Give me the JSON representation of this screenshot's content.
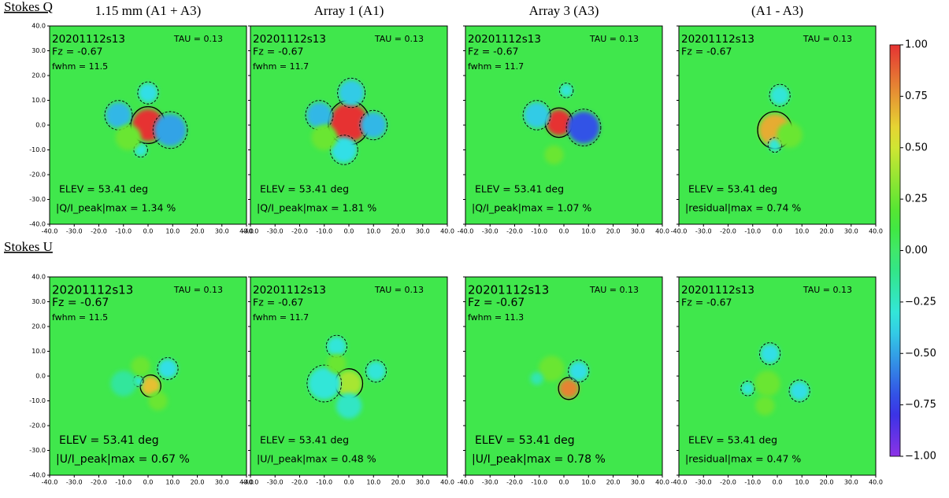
{
  "row_labels": [
    "Stokes Q",
    "Stokes U"
  ],
  "colorbar": {
    "lim": [
      -1,
      1
    ],
    "ticks": [
      {
        "value": 1,
        "label": "1.00"
      },
      {
        "value": 0.75,
        "label": "0.75"
      },
      {
        "value": 0.5,
        "label": "0.50"
      },
      {
        "value": 0.25,
        "label": "0.25"
      },
      {
        "value": 0,
        "label": "0.00"
      },
      {
        "value": -0.25,
        "label": "−0.25"
      },
      {
        "value": -0.5,
        "label": "−0.50"
      },
      {
        "value": -0.75,
        "label": "−0.75"
      },
      {
        "value": -1,
        "label": "−1.00"
      }
    ]
  },
  "chart_data": [
    {
      "type": "heatmap",
      "title": "1.15 mm (A1 + A3)",
      "scan": "20201112s13",
      "tau": "TAU = 0.13",
      "fz": "Fz = -0.67",
      "fwhm": "fwhm = 11.5",
      "elev": "ELEV = 53.41 deg",
      "peak": "|Q/I_peak|max = 1.34 %",
      "base": 0.08,
      "blobs": [
        {
          "x": 0,
          "y": 0,
          "value": 1.0,
          "r": 5
        },
        {
          "x": -12,
          "y": 4,
          "value": -0.45,
          "r": 4
        },
        {
          "x": 9,
          "y": -2,
          "value": -0.5,
          "r": 5
        },
        {
          "x": 0,
          "y": 13,
          "value": -0.35,
          "r": 3
        },
        {
          "x": -3,
          "y": -10,
          "value": -0.3,
          "r": 2
        },
        {
          "x": -8,
          "y": -5,
          "value": 0.25,
          "r": 4
        }
      ],
      "xlim": [
        -40,
        40
      ],
      "ylim": [
        -40,
        40
      ],
      "xticks": [
        {
          "value": -40,
          "label": "-40.0"
        },
        {
          "value": -30,
          "label": "-30.0"
        },
        {
          "value": -20,
          "label": "-20.0"
        },
        {
          "value": -10,
          "label": "-10.0"
        },
        {
          "value": 0,
          "label": "0.0"
        },
        {
          "value": 10,
          "label": "10.0"
        },
        {
          "value": 20,
          "label": "20.0"
        },
        {
          "value": 30,
          "label": "30.0"
        },
        {
          "value": 40,
          "label": "40.0"
        }
      ],
      "yticks": [
        {
          "value": -40,
          "label": "-40.0"
        },
        {
          "value": -30,
          "label": "-30.0"
        },
        {
          "value": -20,
          "label": "-20.0"
        },
        {
          "value": -10,
          "label": "-10.0"
        },
        {
          "value": 0,
          "label": "0.0"
        },
        {
          "value": 10,
          "label": "10.0"
        },
        {
          "value": 20,
          "label": "20.0"
        },
        {
          "value": 30,
          "label": "30.0"
        },
        {
          "value": 40,
          "label": "40.0"
        }
      ]
    },
    {
      "type": "heatmap",
      "title": "Array 1 (A1)",
      "scan": "20201112s13",
      "tau": "TAU = 0.13",
      "fz": "Fz = -0.67",
      "fwhm": "fwhm = 11.7",
      "elev": "ELEV = 53.41 deg",
      "peak": "|Q/I_peak|max = 1.81 %",
      "base": 0.08,
      "blobs": [
        {
          "x": 0,
          "y": 1,
          "value": 1.0,
          "r": 6
        },
        {
          "x": -12,
          "y": 4,
          "value": -0.45,
          "r": 4
        },
        {
          "x": 10,
          "y": 0,
          "value": -0.45,
          "r": 4
        },
        {
          "x": 1,
          "y": 13,
          "value": -0.4,
          "r": 4
        },
        {
          "x": -2,
          "y": -10,
          "value": -0.35,
          "r": 4
        },
        {
          "x": -10,
          "y": -5,
          "value": 0.25,
          "r": 4
        }
      ],
      "xlim": [
        -40,
        40
      ],
      "ylim": [
        -40,
        40
      ],
      "xticks": [
        {
          "value": -40,
          "label": "-40.0"
        },
        {
          "value": -30,
          "label": "-30.0"
        },
        {
          "value": -20,
          "label": "-20.0"
        },
        {
          "value": -10,
          "label": "-10.0"
        },
        {
          "value": 0,
          "label": "0.0"
        },
        {
          "value": 10,
          "label": "10.0"
        },
        {
          "value": 20,
          "label": "20.0"
        },
        {
          "value": 30,
          "label": "30.0"
        },
        {
          "value": 40,
          "label": "40.0"
        }
      ],
      "yticks": [
        {
          "value": -40,
          "label": "-40.0"
        },
        {
          "value": -30,
          "label": "-30.0"
        },
        {
          "value": -20,
          "label": "-20.0"
        },
        {
          "value": -10,
          "label": "-10.0"
        },
        {
          "value": 0,
          "label": "0.0"
        },
        {
          "value": 10,
          "label": "10.0"
        },
        {
          "value": 20,
          "label": "20.0"
        },
        {
          "value": 30,
          "label": "30.0"
        },
        {
          "value": 40,
          "label": "40.0"
        }
      ]
    },
    {
      "type": "heatmap",
      "title": "Array 3 (A3)",
      "scan": "20201112s13",
      "tau": "TAU = 0.13",
      "fz": "Fz = -0.67",
      "fwhm": "fwhm = 11.7",
      "elev": "ELEV = 53.41 deg",
      "peak": "|Q/I_peak|max = 1.07 %",
      "base": 0.08,
      "blobs": [
        {
          "x": -2,
          "y": 1,
          "value": 1.0,
          "r": 4
        },
        {
          "x": 8,
          "y": -1,
          "value": -0.7,
          "r": 5
        },
        {
          "x": -11,
          "y": 4,
          "value": -0.4,
          "r": 4
        },
        {
          "x": 1,
          "y": 14,
          "value": -0.3,
          "r": 2
        },
        {
          "x": -4,
          "y": -12,
          "value": 0.25,
          "r": 3
        }
      ],
      "xlim": [
        -40,
        40
      ],
      "ylim": [
        -40,
        40
      ],
      "xticks": [
        {
          "value": -40,
          "label": "-40.0"
        },
        {
          "value": -30,
          "label": "-30.0"
        },
        {
          "value": -20,
          "label": "-20.0"
        },
        {
          "value": -10,
          "label": "-10.0"
        },
        {
          "value": 0,
          "label": "0.0"
        },
        {
          "value": 10,
          "label": "10.0"
        },
        {
          "value": 20,
          "label": "20.0"
        },
        {
          "value": 30,
          "label": "30.0"
        },
        {
          "value": 40,
          "label": "40.0"
        }
      ],
      "yticks": [
        {
          "value": -40,
          "label": "-40.0"
        },
        {
          "value": -30,
          "label": "-30.0"
        },
        {
          "value": -20,
          "label": "-20.0"
        },
        {
          "value": -10,
          "label": "-10.0"
        },
        {
          "value": 0,
          "label": "0.0"
        },
        {
          "value": 10,
          "label": "10.0"
        },
        {
          "value": 20,
          "label": "20.0"
        },
        {
          "value": 30,
          "label": "30.0"
        },
        {
          "value": 40,
          "label": "40.0"
        }
      ]
    },
    {
      "type": "heatmap",
      "title": "(A1 - A3)",
      "scan": "20201112s13",
      "tau": "TAU = 0.13",
      "fz": "Fz = -0.67",
      "elev": "ELEV = 53.41 deg",
      "peak": "|residual|max = 0.74 %",
      "base": 0.08,
      "blobs": [
        {
          "x": -1,
          "y": -2,
          "value": 0.7,
          "r": 5
        },
        {
          "x": 1,
          "y": 12,
          "value": -0.3,
          "r": 3
        },
        {
          "x": -1,
          "y": -8,
          "value": -0.3,
          "r": 2
        },
        {
          "x": 5,
          "y": -4,
          "value": 0.25,
          "r": 4
        }
      ],
      "xlim": [
        -40,
        40
      ],
      "ylim": [
        -40,
        40
      ],
      "xticks": [
        {
          "value": -40,
          "label": "-40.0"
        },
        {
          "value": -30,
          "label": "-30.0"
        },
        {
          "value": -20,
          "label": "-20.0"
        },
        {
          "value": -10,
          "label": "-10.0"
        },
        {
          "value": 0,
          "label": "0.0"
        },
        {
          "value": 10,
          "label": "10.0"
        },
        {
          "value": 20,
          "label": "20.0"
        },
        {
          "value": 30,
          "label": "30.0"
        },
        {
          "value": 40,
          "label": "40.0"
        }
      ],
      "yticks": [
        {
          "value": -40,
          "label": "-40.0"
        },
        {
          "value": -30,
          "label": "-30.0"
        },
        {
          "value": -20,
          "label": "-20.0"
        },
        {
          "value": -10,
          "label": "-10.0"
        },
        {
          "value": 0,
          "label": "0.0"
        },
        {
          "value": 10,
          "label": "10.0"
        },
        {
          "value": 20,
          "label": "20.0"
        },
        {
          "value": 30,
          "label": "30.0"
        },
        {
          "value": 40,
          "label": "40.0"
        }
      ]
    },
    {
      "type": "heatmap",
      "scan": "20201112s13",
      "tau": "TAU = 0.13",
      "fz": "Fz = -0.67",
      "fwhm": "fwhm = 11.5",
      "elev": "ELEV = 53.41 deg",
      "peak": "|U/I_peak|max = 0.67 %",
      "base": 0.08,
      "blobs": [
        {
          "x": 1,
          "y": -4,
          "value": 0.65,
          "r": 3
        },
        {
          "x": 8,
          "y": 3,
          "value": -0.35,
          "r": 3
        },
        {
          "x": -4,
          "y": -2,
          "value": -0.3,
          "r": 1.5
        },
        {
          "x": -3,
          "y": 4,
          "value": 0.25,
          "r": 3
        },
        {
          "x": 4,
          "y": -10,
          "value": 0.25,
          "r": 3
        },
        {
          "x": -10,
          "y": -3,
          "value": -0.15,
          "r": 4
        }
      ],
      "xlim": [
        -40,
        40
      ],
      "ylim": [
        -40,
        40
      ],
      "xticks": [
        {
          "value": -40,
          "label": "-40.0"
        },
        {
          "value": -30,
          "label": "-30.0"
        },
        {
          "value": -20,
          "label": "-20.0"
        },
        {
          "value": -10,
          "label": "-10.0"
        },
        {
          "value": 0,
          "label": "0.0"
        },
        {
          "value": 10,
          "label": "10.0"
        },
        {
          "value": 20,
          "label": "20.0"
        },
        {
          "value": 30,
          "label": "30.0"
        },
        {
          "value": 40,
          "label": "40.0"
        }
      ],
      "yticks": [
        {
          "value": -40,
          "label": "-40.0"
        },
        {
          "value": -30,
          "label": "-30.0"
        },
        {
          "value": -20,
          "label": "-20.0"
        },
        {
          "value": -10,
          "label": "-10.0"
        },
        {
          "value": 0,
          "label": "0.0"
        },
        {
          "value": 10,
          "label": "10.0"
        },
        {
          "value": 20,
          "label": "20.0"
        },
        {
          "value": 30,
          "label": "30.0"
        },
        {
          "value": 40,
          "label": "40.0"
        }
      ]
    },
    {
      "type": "heatmap",
      "scan": "20201112s13",
      "tau": "TAU = 0.13",
      "fz": "Fz = -0.67",
      "fwhm": "fwhm = 11.7",
      "elev": "ELEV = 53.41 deg",
      "peak": "|U/I_peak|max = 0.48 %",
      "base": 0.08,
      "blobs": [
        {
          "x": 0,
          "y": -3,
          "value": 0.4,
          "r": 4
        },
        {
          "x": -10,
          "y": -3,
          "value": -0.3,
          "r": 5
        },
        {
          "x": -5,
          "y": 12,
          "value": -0.3,
          "r": 3
        },
        {
          "x": 11,
          "y": 2,
          "value": -0.3,
          "r": 3
        },
        {
          "x": -5,
          "y": 5,
          "value": 0.25,
          "r": 3
        },
        {
          "x": 0,
          "y": -12,
          "value": -0.25,
          "r": 4
        }
      ],
      "xlim": [
        -40,
        40
      ],
      "ylim": [
        -40,
        40
      ],
      "xticks": [
        {
          "value": -40,
          "label": "-40.0"
        },
        {
          "value": -30,
          "label": "-30.0"
        },
        {
          "value": -20,
          "label": "-20.0"
        },
        {
          "value": -10,
          "label": "-10.0"
        },
        {
          "value": 0,
          "label": "0.0"
        },
        {
          "value": 10,
          "label": "10.0"
        },
        {
          "value": 20,
          "label": "20.0"
        },
        {
          "value": 30,
          "label": "30.0"
        },
        {
          "value": 40,
          "label": "40.0"
        }
      ],
      "yticks": [
        {
          "value": -40,
          "label": "-40.0"
        },
        {
          "value": -30,
          "label": "-30.0"
        },
        {
          "value": -20,
          "label": "-20.0"
        },
        {
          "value": -10,
          "label": "-10.0"
        },
        {
          "value": 0,
          "label": "0.0"
        },
        {
          "value": 10,
          "label": "10.0"
        },
        {
          "value": 20,
          "label": "20.0"
        },
        {
          "value": 30,
          "label": "30.0"
        },
        {
          "value": 40,
          "label": "40.0"
        }
      ]
    },
    {
      "type": "heatmap",
      "scan": "20201112s13",
      "tau": "TAU = 0.13",
      "fz": "Fz = -0.67",
      "fwhm": "fwhm = 11.3",
      "elev": "ELEV = 53.41 deg",
      "peak": "|U/I_peak|max = 0.78 %",
      "base": 0.08,
      "blobs": [
        {
          "x": 2,
          "y": -5,
          "value": 0.8,
          "r": 3
        },
        {
          "x": 6,
          "y": 2,
          "value": -0.35,
          "r": 3
        },
        {
          "x": -5,
          "y": 3,
          "value": 0.25,
          "r": 4
        },
        {
          "x": -11,
          "y": -1,
          "value": -0.2,
          "r": 2
        }
      ],
      "xlim": [
        -40,
        40
      ],
      "ylim": [
        -40,
        40
      ],
      "xticks": [
        {
          "value": -40,
          "label": "-40.0"
        },
        {
          "value": -30,
          "label": "-30.0"
        },
        {
          "value": -20,
          "label": "-20.0"
        },
        {
          "value": -10,
          "label": "-10.0"
        },
        {
          "value": 0,
          "label": "0.0"
        },
        {
          "value": 10,
          "label": "10.0"
        },
        {
          "value": 20,
          "label": "20.0"
        },
        {
          "value": 30,
          "label": "30.0"
        },
        {
          "value": 40,
          "label": "40.0"
        }
      ],
      "yticks": [
        {
          "value": -40,
          "label": "-40.0"
        },
        {
          "value": -30,
          "label": "-30.0"
        },
        {
          "value": -20,
          "label": "-20.0"
        },
        {
          "value": -10,
          "label": "-10.0"
        },
        {
          "value": 0,
          "label": "0.0"
        },
        {
          "value": 10,
          "label": "10.0"
        },
        {
          "value": 20,
          "label": "20.0"
        },
        {
          "value": 30,
          "label": "30.0"
        },
        {
          "value": 40,
          "label": "40.0"
        }
      ]
    },
    {
      "type": "heatmap",
      "scan": "20201112s13",
      "tau": "TAU = 0.13",
      "fz": "Fz = -0.67",
      "elev": "ELEV = 53.41 deg",
      "peak": "|residual|max = 0.47 %",
      "base": 0.08,
      "blobs": [
        {
          "x": -3,
          "y": 9,
          "value": -0.35,
          "r": 3
        },
        {
          "x": 9,
          "y": -6,
          "value": -0.35,
          "r": 3
        },
        {
          "x": -12,
          "y": -5,
          "value": -0.3,
          "r": 2
        },
        {
          "x": -4,
          "y": -3,
          "value": 0.25,
          "r": 4
        },
        {
          "x": -5,
          "y": -12,
          "value": 0.25,
          "r": 3
        }
      ],
      "xlim": [
        -40,
        40
      ],
      "ylim": [
        -40,
        40
      ],
      "xticks": [
        {
          "value": -40,
          "label": "-40.0"
        },
        {
          "value": -30,
          "label": "-30.0"
        },
        {
          "value": -20,
          "label": "-20.0"
        },
        {
          "value": -10,
          "label": "-10.0"
        },
        {
          "value": 0,
          "label": "0.0"
        },
        {
          "value": 10,
          "label": "10.0"
        },
        {
          "value": 20,
          "label": "20.0"
        },
        {
          "value": 30,
          "label": "30.0"
        },
        {
          "value": 40,
          "label": "40.0"
        }
      ],
      "yticks": [
        {
          "value": -40,
          "label": "-40.0"
        },
        {
          "value": -30,
          "label": "-30.0"
        },
        {
          "value": -20,
          "label": "-20.0"
        },
        {
          "value": -10,
          "label": "-10.0"
        },
        {
          "value": 0,
          "label": "0.0"
        },
        {
          "value": 10,
          "label": "10.0"
        },
        {
          "value": 20,
          "label": "20.0"
        },
        {
          "value": 30,
          "label": "30.0"
        },
        {
          "value": 40,
          "label": "40.0"
        }
      ]
    }
  ]
}
